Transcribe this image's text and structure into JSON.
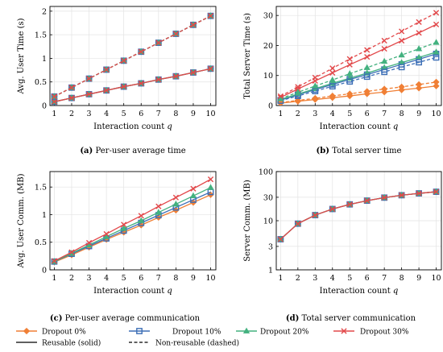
{
  "colors": {
    "Dropout 0%": "#f07f35",
    "Dropout 10%": "#3d6fb6",
    "Dropout 20%": "#43b17f",
    "Dropout 30%": "#e2484a"
  },
  "legend": {
    "entries": [
      {
        "name": "Dropout 0%",
        "marker": "diamond",
        "color": "#f07f35"
      },
      {
        "name": "Dropout 10%",
        "marker": "square",
        "color": "#3d6fb6"
      },
      {
        "name": "Dropout 20%",
        "marker": "triangle",
        "color": "#43b17f"
      },
      {
        "name": "Dropout 30%",
        "marker": "cross",
        "color": "#e2484a"
      }
    ],
    "styles": [
      {
        "name": "Reusable (solid)",
        "dash": "solid"
      },
      {
        "name": "Non-reusable (dashed)",
        "dash": "dashed"
      }
    ]
  },
  "chart_data": [
    {
      "id": "a",
      "type": "line",
      "caption_label": "(a)",
      "caption": "Per-user average time",
      "xlabel": "Interaction count q",
      "ylabel": "Avg. User Time (s)",
      "x": [
        1,
        2,
        3,
        4,
        5,
        6,
        7,
        8,
        9,
        10
      ],
      "xlim": [
        0.75,
        10.3
      ],
      "ylim": [
        0,
        2.1
      ],
      "yticks": [
        0,
        0.5,
        1,
        1.5,
        2
      ],
      "ytick_labels": [
        "0",
        "0.5",
        "1",
        "1.5",
        "2"
      ],
      "grid": true,
      "series": [
        {
          "name": "Dropout 0%",
          "dash": "solid",
          "marker": "diamond",
          "values": [
            0.08,
            0.16,
            0.24,
            0.32,
            0.4,
            0.47,
            0.55,
            0.62,
            0.7,
            0.78
          ]
        },
        {
          "name": "Dropout 10%",
          "dash": "solid",
          "marker": "square",
          "values": [
            0.08,
            0.16,
            0.24,
            0.32,
            0.4,
            0.47,
            0.55,
            0.62,
            0.7,
            0.78
          ]
        },
        {
          "name": "Dropout 20%",
          "dash": "solid",
          "marker": "triangle",
          "values": [
            0.08,
            0.16,
            0.24,
            0.32,
            0.4,
            0.47,
            0.55,
            0.62,
            0.7,
            0.78
          ]
        },
        {
          "name": "Dropout 30%",
          "dash": "solid",
          "marker": "cross",
          "values": [
            0.08,
            0.16,
            0.24,
            0.32,
            0.4,
            0.47,
            0.55,
            0.62,
            0.7,
            0.78
          ]
        },
        {
          "name": "Dropout 0%",
          "dash": "dashed",
          "marker": "diamond",
          "values": [
            0.19,
            0.38,
            0.57,
            0.76,
            0.95,
            1.14,
            1.33,
            1.52,
            1.71,
            1.9
          ]
        },
        {
          "name": "Dropout 10%",
          "dash": "dashed",
          "marker": "square",
          "values": [
            0.19,
            0.38,
            0.57,
            0.76,
            0.95,
            1.14,
            1.33,
            1.52,
            1.71,
            1.9
          ]
        },
        {
          "name": "Dropout 20%",
          "dash": "dashed",
          "marker": "triangle",
          "values": [
            0.19,
            0.38,
            0.57,
            0.76,
            0.95,
            1.14,
            1.33,
            1.52,
            1.71,
            1.9
          ]
        },
        {
          "name": "Dropout 30%",
          "dash": "dashed",
          "marker": "cross",
          "values": [
            0.19,
            0.38,
            0.57,
            0.76,
            0.95,
            1.14,
            1.33,
            1.52,
            1.71,
            1.9
          ]
        }
      ]
    },
    {
      "id": "b",
      "type": "line",
      "caption_label": "(b)",
      "caption": "Total server time",
      "xlabel": "Interaction count q",
      "ylabel": "Total Server Time (s)",
      "x": [
        1,
        2,
        3,
        4,
        5,
        6,
        7,
        8,
        9,
        10
      ],
      "xlim": [
        0.75,
        10.3
      ],
      "ylim": [
        0,
        33
      ],
      "yticks": [
        0,
        10,
        20,
        30
      ],
      "ytick_labels": [
        "0",
        "10",
        "20",
        "30"
      ],
      "grid": true,
      "series": [
        {
          "name": "Dropout 0%",
          "dash": "solid",
          "marker": "diamond",
          "values": [
            0.8,
            1.4,
            2.0,
            2.6,
            3.2,
            3.9,
            4.5,
            5.2,
            5.8,
            6.5
          ]
        },
        {
          "name": "Dropout 10%",
          "dash": "solid",
          "marker": "square",
          "values": [
            1.8,
            3.6,
            5.3,
            7.0,
            8.7,
            10.3,
            12.0,
            13.7,
            15.4,
            17.2
          ]
        },
        {
          "name": "Dropout 20%",
          "dash": "solid",
          "marker": "triangle",
          "values": [
            2.0,
            3.8,
            5.6,
            7.4,
            9.1,
            10.8,
            12.6,
            14.3,
            16.0,
            17.8
          ]
        },
        {
          "name": "Dropout 30%",
          "dash": "solid",
          "marker": "cross",
          "values": [
            2.7,
            5.5,
            8.2,
            10.9,
            13.6,
            16.2,
            18.9,
            21.6,
            24.2,
            27.0
          ]
        },
        {
          "name": "Dropout 0%",
          "dash": "dashed",
          "marker": "diamond",
          "values": [
            1.0,
            1.7,
            2.4,
            3.2,
            3.9,
            4.7,
            5.5,
            6.2,
            7.0,
            7.8
          ]
        },
        {
          "name": "Dropout 10%",
          "dash": "dashed",
          "marker": "square",
          "values": [
            1.6,
            3.2,
            4.8,
            6.4,
            8.0,
            9.6,
            11.2,
            12.8,
            14.4,
            16.0
          ]
        },
        {
          "name": "Dropout 20%",
          "dash": "dashed",
          "marker": "triangle",
          "values": [
            2.3,
            4.4,
            6.5,
            8.5,
            10.6,
            12.6,
            14.7,
            16.8,
            18.9,
            21.0
          ]
        },
        {
          "name": "Dropout 30%",
          "dash": "dashed",
          "marker": "cross",
          "values": [
            3.1,
            6.2,
            9.3,
            12.4,
            15.5,
            18.5,
            21.6,
            24.7,
            27.8,
            30.9
          ]
        }
      ]
    },
    {
      "id": "c",
      "type": "line",
      "caption_label": "(c)",
      "caption": "Per-user average communication",
      "xlabel": "Interaction count q",
      "ylabel": "Avg. User Comm. (MB)",
      "x": [
        1,
        2,
        3,
        4,
        5,
        6,
        7,
        8,
        9,
        10
      ],
      "xlim": [
        0.75,
        10.3
      ],
      "ylim": [
        0,
        1.78
      ],
      "yticks": [
        0,
        0.5,
        1,
        1.5
      ],
      "ytick_labels": [
        "0",
        "0.5",
        "1",
        "1.5"
      ],
      "grid": true,
      "series": [
        {
          "name": "Dropout 0%",
          "dash": "solid",
          "marker": "diamond",
          "values": [
            0.14,
            0.27,
            0.41,
            0.55,
            0.68,
            0.81,
            0.95,
            1.08,
            1.22,
            1.36
          ]
        },
        {
          "name": "Dropout 10%",
          "dash": "solid",
          "marker": "square",
          "values": [
            0.15,
            0.29,
            0.43,
            0.57,
            0.71,
            0.85,
            0.99,
            1.13,
            1.27,
            1.41
          ]
        },
        {
          "name": "Dropout 20%",
          "dash": "solid",
          "marker": "triangle",
          "values": [
            0.15,
            0.3,
            0.45,
            0.6,
            0.75,
            0.89,
            1.04,
            1.19,
            1.34,
            1.49
          ]
        },
        {
          "name": "Dropout 30%",
          "dash": "solid",
          "marker": "cross",
          "values": [
            0.16,
            0.32,
            0.49,
            0.65,
            0.82,
            0.98,
            1.15,
            1.31,
            1.47,
            1.64
          ]
        }
      ]
    },
    {
      "id": "d",
      "type": "line",
      "caption_label": "(d)",
      "caption": "Total server communication",
      "xlabel": "Interaction count q",
      "ylabel": "Server Comm. (MB)",
      "x": [
        1,
        2,
        3,
        4,
        5,
        6,
        7,
        8,
        9,
        10
      ],
      "xlim": [
        0.75,
        10.3
      ],
      "ylim": [
        1,
        100
      ],
      "yscale": "log",
      "yticks": [
        1,
        3,
        10,
        30,
        100
      ],
      "ytick_labels": [
        "1",
        "3",
        "10",
        "30",
        "100"
      ],
      "grid": true,
      "series": [
        {
          "name": "Dropout 0%",
          "dash": "solid",
          "marker": "diamond",
          "values": [
            4.2,
            8.7,
            13.0,
            17.3,
            21.5,
            25.6,
            29.5,
            33.0,
            36.0,
            38.8
          ]
        },
        {
          "name": "Dropout 10%",
          "dash": "solid",
          "marker": "square",
          "values": [
            4.2,
            8.7,
            13.0,
            17.3,
            21.5,
            25.6,
            29.5,
            33.0,
            36.0,
            38.8
          ]
        },
        {
          "name": "Dropout 20%",
          "dash": "solid",
          "marker": "triangle",
          "values": [
            4.2,
            8.7,
            13.0,
            17.3,
            21.5,
            25.6,
            29.5,
            33.0,
            36.0,
            38.8
          ]
        },
        {
          "name": "Dropout 30%",
          "dash": "solid",
          "marker": "cross",
          "values": [
            4.2,
            8.7,
            13.0,
            17.3,
            21.5,
            25.6,
            29.5,
            33.0,
            36.0,
            38.8
          ]
        }
      ]
    }
  ]
}
